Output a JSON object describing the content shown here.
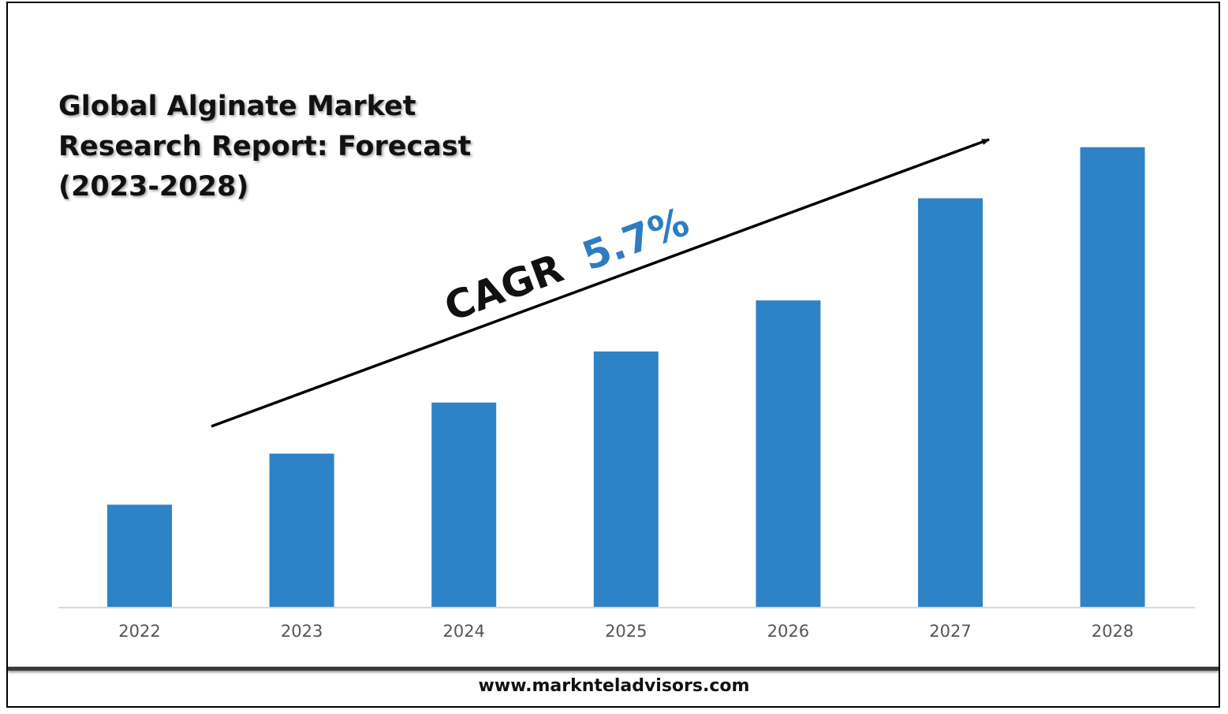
{
  "chart_data": {
    "type": "bar",
    "title": [
      "Global Alginate Market",
      "Research Report: Forecast",
      "(2023-2028)"
    ],
    "categories": [
      "2022",
      "2023",
      "2024",
      "2025",
      "2026",
      "2027",
      "2028"
    ],
    "values": [
      1.0,
      1.5,
      2.0,
      2.5,
      3.0,
      4.0,
      4.5
    ],
    "ylim": [
      0,
      5.0
    ],
    "bar_color": "#2e83c6",
    "grid": false,
    "annotation": {
      "label": "CAGR",
      "value": "5.7%",
      "value_color": "#2e7cc2"
    }
  },
  "footer": {
    "url": "www.marknteladvisors.com"
  }
}
